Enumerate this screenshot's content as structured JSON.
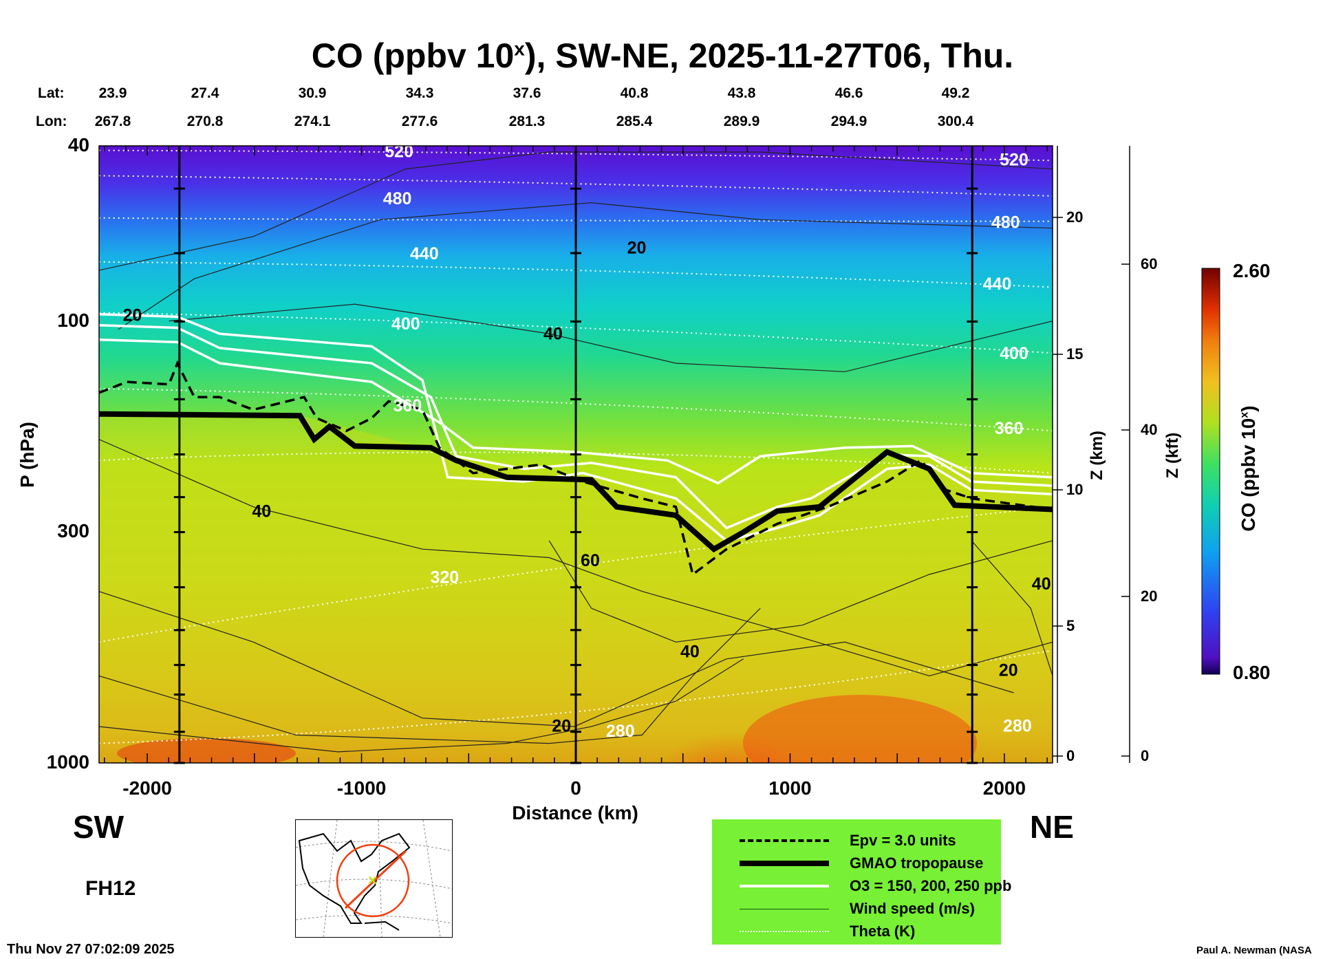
{
  "title": {
    "main": "CO (ppbv 10",
    "sup": "x",
    "rest": "), SW-NE, 2025-11-27T06, Thu."
  },
  "lat_label": "Lat:",
  "lon_label": "Lon:",
  "lats": [
    "23.9",
    "27.4",
    "30.9",
    "34.3",
    "37.6",
    "40.8",
    "43.8",
    "46.6",
    "49.2"
  ],
  "lons": [
    "267.8",
    "270.8",
    "274.1",
    "277.6",
    "281.3",
    "285.4",
    "289.9",
    "294.9",
    "300.4"
  ],
  "direction_left": "SW",
  "direction_right": "NE",
  "forecast_hour": "FH12",
  "timestamp": "Thu Nov 27 07:02:09 2025",
  "credit": "Paul A. Newman (NASA",
  "legend": [
    {
      "label": "Epv = 3.0 units",
      "style": "dashed",
      "color": "#000000"
    },
    {
      "label": "GMAO tropopause",
      "style": "thick",
      "color": "#000000"
    },
    {
      "label": "O3 = 150, 200, 250 ppb",
      "style": "white",
      "color": "#ffffff"
    },
    {
      "label": "Wind speed (m/s)",
      "style": "thin",
      "color": "#1a5a10"
    },
    {
      "label": "Theta (K)",
      "style": "dotted",
      "color": "#ffffff"
    }
  ],
  "legend_bg": "#77f035",
  "chart_data": {
    "type": "heatmap",
    "title": "CO (ppbv 10^x), SW-NE, 2025-11-27T06, Thu.",
    "xlabel": "Distance (km)",
    "ylabel": "P (hPa)",
    "y2label": "Z (km)",
    "y3label": "Z (kft)",
    "xlim": [
      -2225,
      2225
    ],
    "ylim": [
      1000,
      40
    ],
    "yscale": "log",
    "x_ticks": [
      "-2000",
      "-1000",
      "0",
      "1000",
      "2000"
    ],
    "x_tick_values": [
      -2000,
      -1000,
      0,
      1000,
      2000
    ],
    "y_ticks": [
      "40",
      "100",
      "300",
      "1000"
    ],
    "y_tick_values": [
      40,
      100,
      300,
      1000
    ],
    "zkm_ticks": [
      "0",
      "5",
      "10",
      "15",
      "20"
    ],
    "zkft_ticks": [
      "0",
      "20",
      "40",
      "60"
    ],
    "colorbar": {
      "label": "CO (ppbv 10^x)",
      "min": "0.80",
      "max": "2.60",
      "label_main": "CO (ppbv 10",
      "label_sup": "x",
      "label_end": ")"
    },
    "theta_labels": [
      "520",
      "480",
      "440",
      "400",
      "360",
      "320",
      "280"
    ],
    "wind_labels": [
      "20",
      "40",
      "60"
    ],
    "vertical_lines_km": [
      -1850,
      0,
      1850
    ]
  }
}
